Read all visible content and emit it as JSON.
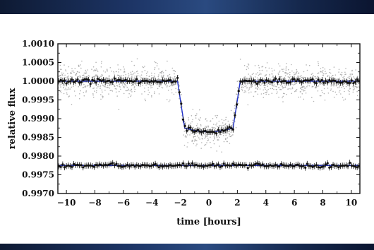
{
  "colors": {
    "background": "#ffffff",
    "banner": "#1d3566",
    "model_line": "#2233cc",
    "binned_points": "#111111",
    "raw_points": "#9a9a9a"
  },
  "chart_data": {
    "type": "scatter",
    "title": "",
    "xlabel": "time [hours]",
    "ylabel": "relative flux",
    "xlim": [
      -10.6,
      10.6
    ],
    "ylim": [
      0.997,
      1.001
    ],
    "x_ticks": [
      -10,
      -8,
      -6,
      -4,
      -2,
      0,
      2,
      4,
      6,
      8,
      10
    ],
    "x_tick_labels": [
      "−10",
      "−8",
      "−6",
      "−4",
      "−2",
      "0",
      "2",
      "4",
      "6",
      "8",
      "10"
    ],
    "y_ticks": [
      0.997,
      0.9975,
      0.998,
      0.9985,
      0.999,
      0.9995,
      1.0,
      1.0005,
      1.001
    ],
    "y_tick_labels": [
      "0.9970",
      "0.9975",
      "0.9980",
      "0.9985",
      "0.9990",
      "0.9995",
      "1.0000",
      "1.0005",
      "1.0010"
    ],
    "grid": false,
    "legend": "none",
    "series": [
      {
        "kind": "binned_with_errorbars",
        "transit_model": {
          "baseline": 1.0,
          "depth": 0.00125,
          "ingress_start": -2.2,
          "flat_start": -1.7,
          "flat_end": 1.7,
          "egress_end": 2.2,
          "bottom_curvature": 0.0001
        },
        "scatter": 9e-05,
        "error": 8e-05
      },
      {
        "kind": "binned_with_errorbars",
        "flat_model": {
          "level": 0.99775
        },
        "scatter": 8e-05,
        "error": 8e-05
      },
      {
        "kind": "raw_points",
        "follows": "transit_model",
        "scatter": 0.0003
      }
    ]
  }
}
